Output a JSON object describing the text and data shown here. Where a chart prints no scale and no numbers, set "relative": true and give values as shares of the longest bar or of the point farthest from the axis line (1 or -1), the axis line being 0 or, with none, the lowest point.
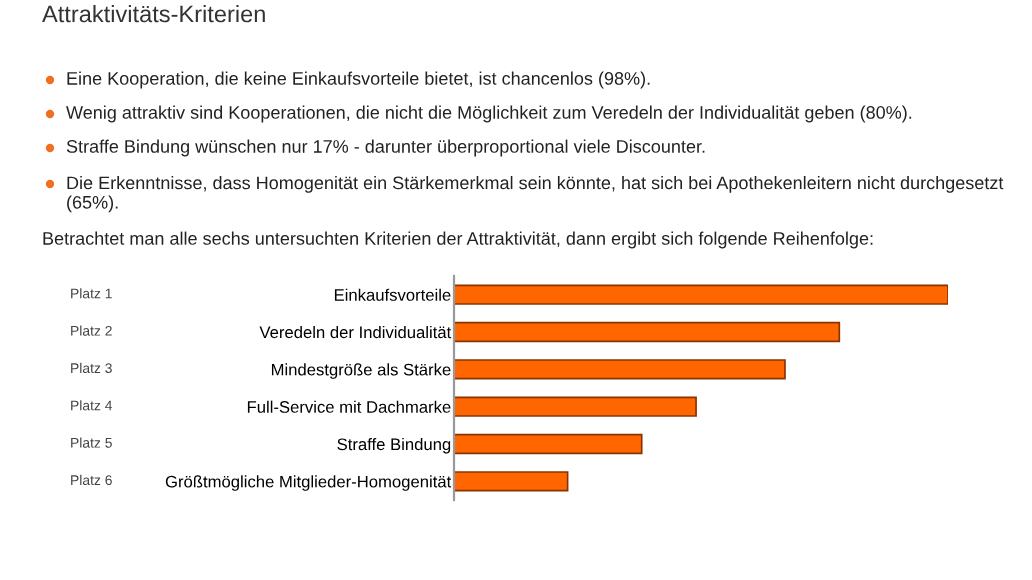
{
  "chart_data": {
    "type": "bar",
    "orientation": "horizontal",
    "relative": true,
    "title": "Attraktivitäts-Kriterien",
    "categories": [
      "Einkaufsvorteile",
      "Veredeln der Individualität",
      "Mindestgröße als Stärke",
      "Full-Service mit Dachmarke",
      "Straffe Bindung",
      "Größtmögliche Mitglieder-Homogenität"
    ],
    "values": [
      1,
      0.78,
      0.67,
      0.49,
      0.38,
      0.23
    ],
    "color": "#ff6600",
    "annotations": [
      "Eine Kooperation, die keine Einkaufsvorteile bietet, ist chancenlos (98%).",
      "Wenig attraktiv sind Kooperationen, die nicht die Möglichkeit zum Veredeln der Individualität geben (80%).",
      "Straffe Bindung wünschen nur 17% - darunter überproportional viele Discounter.",
      "Die Erkenntnisse, dass Homogenität ein Stärkemerkmal sein könnte, hat sich bei Apothekenleitern nicht durchgesetzt (65%).",
      "Betrachtet man alle sechs untersuchten Kriterien der Attraktivität, dann ergibt sich folgende Reihenfolge:",
      "Platz 1",
      "Platz 2",
      "Platz 3",
      "Platz 4",
      "Platz 5",
      "Platz 6"
    ],
    "grid": false,
    "legend": false
  }
}
